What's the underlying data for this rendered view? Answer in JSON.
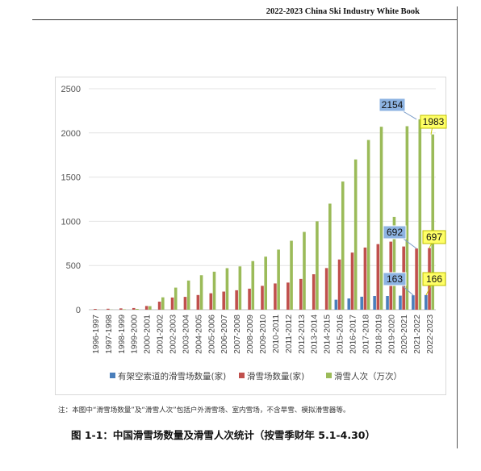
{
  "header": {
    "title": "2022-2023 China Ski Industry White Book"
  },
  "note": "注：本图中“滑雪场数量”及“滑雪人次”包括户外滑雪场、室内雪场，不含旱雪、模拟滑雪器等。",
  "caption": "图 1-1：中国滑雪场数量及滑雪人次统计（按雪季财年 5.1-4.30）",
  "colors": {
    "blue": "#4a7ebb",
    "red": "#c0504d",
    "green": "#9bbb59",
    "callout_blue": "#8db3e2",
    "callout_yellow": "#ffff66"
  },
  "chart_data": {
    "type": "bar",
    "title": "",
    "xlabel": "",
    "ylabel": "",
    "ylim": [
      0,
      2500
    ],
    "yticks": [
      0,
      500,
      1000,
      1500,
      2000,
      2500
    ],
    "grid": true,
    "legend_position": "bottom",
    "categories": [
      "1996-1997",
      "1997-1998",
      "1998-1999",
      "1999-2000",
      "2000-2001",
      "2001-2002",
      "2002-2003",
      "2003-2004",
      "2004-2005",
      "2005-2006",
      "2006-2007",
      "2007-2008",
      "2008-2009",
      "2009-2010",
      "2010-2011",
      "2011-2012",
      "2012-2013",
      "2013-2014",
      "2014-2015",
      "2015-2016",
      "2016-2017",
      "2017-2018",
      "2018-2019",
      "2019-2020",
      "2020-2021",
      "2021-2022",
      "2022-2023"
    ],
    "series": [
      {
        "name": "有架空索道的滑雪场数量(家)",
        "color": "#4a7ebb",
        "values": [
          0,
          0,
          0,
          0,
          0,
          0,
          0,
          0,
          0,
          0,
          0,
          0,
          0,
          0,
          0,
          0,
          0,
          0,
          0,
          113,
          127,
          147,
          155,
          155,
          159,
          163,
          166
        ]
      },
      {
        "name": "滑雪场数量(家)",
        "color": "#c0504d",
        "values": [
          9,
          11,
          15,
          19,
          42,
          91,
          138,
          145,
          166,
          186,
          205,
          220,
          238,
          270,
          297,
          307,
          348,
          401,
          471,
          568,
          646,
          703,
          742,
          770,
          715,
          692,
          697
        ]
      },
      {
        "name": "滑雪人次（万次）",
        "color": "#9bbb59",
        "values": [
          1,
          2,
          5,
          9,
          40,
          140,
          250,
          330,
          390,
          430,
          470,
          490,
          550,
          600,
          680,
          780,
          880,
          1000,
          1200,
          1450,
          1700,
          1920,
          2070,
          1050,
          2076,
          2154,
          1983
        ]
      }
    ],
    "callouts": [
      {
        "label": "2154",
        "style": "blue"
      },
      {
        "label": "1983",
        "style": "yellow"
      },
      {
        "label": "692",
        "style": "blue"
      },
      {
        "label": "697",
        "style": "yellow"
      },
      {
        "label": "163",
        "style": "blue"
      },
      {
        "label": "166",
        "style": "yellow"
      }
    ]
  }
}
